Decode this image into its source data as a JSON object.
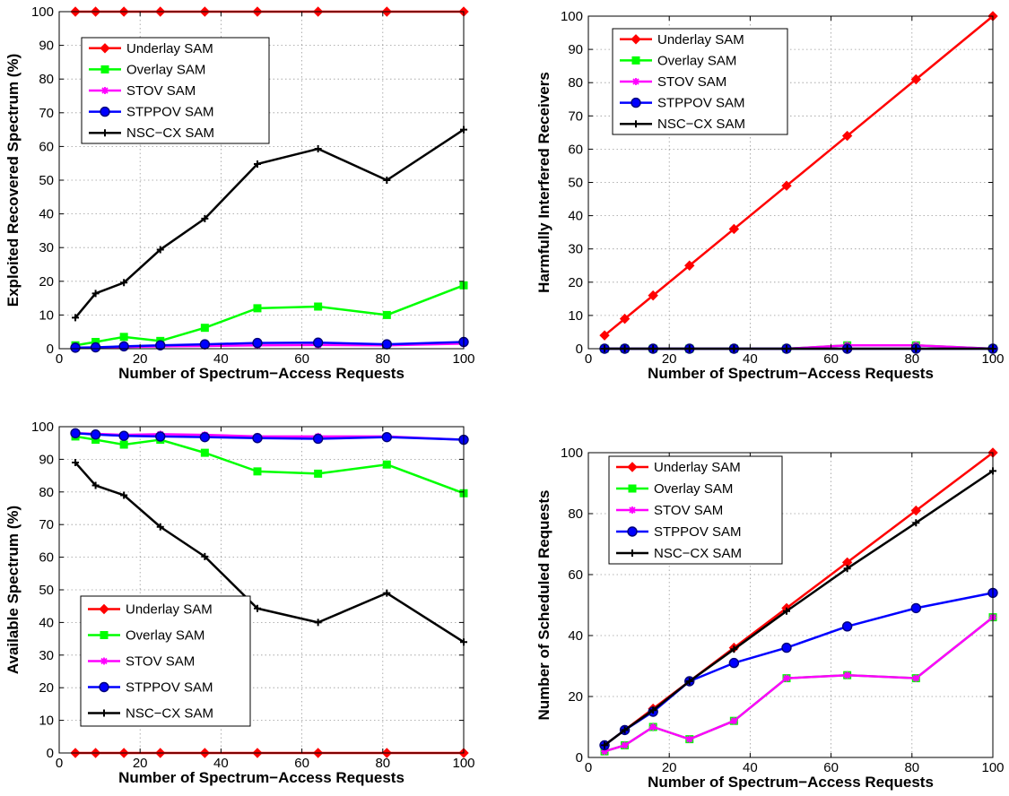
{
  "chart_data": [
    {
      "type": "line",
      "xlabel": "Number of Spectrum−Access Requests",
      "ylabel": "Exploited Recovered Spectrum (%)",
      "xlim": [
        0,
        100
      ],
      "ylim": [
        0,
        100
      ],
      "xticks": [
        0,
        20,
        40,
        60,
        80,
        100
      ],
      "yticks": [
        0,
        10,
        20,
        30,
        40,
        50,
        60,
        70,
        80,
        90,
        100
      ],
      "grid": true,
      "legend_position": "top-left",
      "x": [
        4,
        9,
        16,
        25,
        36,
        49,
        64,
        81,
        100
      ],
      "series": [
        {
          "name": "Underlay SAM",
          "color": "#ff0000",
          "marker": "diamond",
          "values": [
            100,
            100,
            100,
            100,
            100,
            100,
            100,
            100,
            100
          ]
        },
        {
          "name": "Overlay SAM",
          "color": "#00ff00",
          "marker": "square",
          "values": [
            1,
            2,
            3.5,
            2.3,
            6.2,
            12,
            12.5,
            10,
            18.8
          ]
        },
        {
          "name": "STOV SAM",
          "color": "#ff00ff",
          "marker": "star",
          "values": [
            0.2,
            0.3,
            0.5,
            0.7,
            0.8,
            1,
            1.1,
            1,
            1.5
          ]
        },
        {
          "name": "STPPOV SAM",
          "color": "#0000ff",
          "marker": "circle",
          "values": [
            0.3,
            0.4,
            0.7,
            1,
            1.3,
            1.7,
            1.8,
            1.3,
            2
          ]
        },
        {
          "name": "NSC−CX SAM",
          "color": "#000000",
          "marker": "plus",
          "values": [
            9.2,
            16.4,
            19.6,
            29.4,
            38.6,
            54.8,
            59.3,
            50,
            65
          ]
        }
      ]
    },
    {
      "type": "line",
      "xlabel": "Number of Spectrum−Access Requests",
      "ylabel": "Harmfully Interfered Receivers",
      "xlim": [
        0,
        100
      ],
      "ylim": [
        0,
        100
      ],
      "xticks": [
        0,
        20,
        40,
        60,
        80,
        100
      ],
      "yticks": [
        0,
        10,
        20,
        30,
        40,
        50,
        60,
        70,
        80,
        90,
        100
      ],
      "grid": true,
      "legend_position": "top-left",
      "x": [
        4,
        9,
        16,
        25,
        36,
        49,
        64,
        81,
        100
      ],
      "series": [
        {
          "name": "Underlay SAM",
          "color": "#ff0000",
          "marker": "diamond",
          "values": [
            4,
            9,
            16,
            25,
            36,
            49,
            64,
            81,
            100
          ]
        },
        {
          "name": "Overlay SAM",
          "color": "#00ff00",
          "marker": "square",
          "values": [
            0,
            0,
            0,
            0,
            0,
            0,
            1,
            1,
            0
          ]
        },
        {
          "name": "STOV SAM",
          "color": "#ff00ff",
          "marker": "star",
          "values": [
            0,
            0,
            0,
            0,
            0,
            0,
            1,
            1,
            0
          ]
        },
        {
          "name": "STPPOV SAM",
          "color": "#0000ff",
          "marker": "circle",
          "values": [
            0,
            0,
            0,
            0,
            0,
            0,
            0,
            0,
            0
          ]
        },
        {
          "name": "NSC−CX SAM",
          "color": "#000000",
          "marker": "plus",
          "values": [
            0,
            0,
            0,
            0,
            0,
            0,
            0,
            0,
            0
          ]
        }
      ]
    },
    {
      "type": "line",
      "xlabel": "Number of Spectrum−Access Requests",
      "ylabel": "Available Spectrum (%)",
      "xlim": [
        0,
        100
      ],
      "ylim": [
        0,
        100
      ],
      "xticks": [
        0,
        20,
        40,
        60,
        80,
        100
      ],
      "yticks": [
        0,
        10,
        20,
        30,
        40,
        50,
        60,
        70,
        80,
        90,
        100
      ],
      "grid": true,
      "legend_position": "bottom-left",
      "x": [
        4,
        9,
        16,
        25,
        36,
        49,
        64,
        81,
        100
      ],
      "series": [
        {
          "name": "Underlay SAM",
          "color": "#ff0000",
          "marker": "diamond",
          "values": [
            0,
            0,
            0,
            0,
            0,
            0,
            0,
            0,
            0
          ]
        },
        {
          "name": "Overlay SAM",
          "color": "#00ff00",
          "marker": "square",
          "values": [
            97,
            96,
            94.5,
            96,
            92,
            86.3,
            85.6,
            88.4,
            79.6
          ]
        },
        {
          "name": "STOV SAM",
          "color": "#ff00ff",
          "marker": "star",
          "values": [
            98,
            97.8,
            97.5,
            97.7,
            97.5,
            97,
            97,
            97,
            96
          ]
        },
        {
          "name": "STPPOV SAM",
          "color": "#0000ff",
          "marker": "circle",
          "values": [
            98,
            97.6,
            97.2,
            97,
            96.8,
            96.5,
            96.3,
            96.8,
            96
          ]
        },
        {
          "name": "NSC−CX SAM",
          "color": "#000000",
          "marker": "plus",
          "values": [
            89,
            82,
            79,
            69.3,
            60.2,
            44.3,
            40,
            49,
            34
          ]
        }
      ]
    },
    {
      "type": "line",
      "xlabel": "Number of Spectrum−Access Requests",
      "ylabel": "Number of Scheduled Requests",
      "xlim": [
        0,
        100
      ],
      "ylim": [
        0,
        100
      ],
      "xticks": [
        0,
        20,
        40,
        60,
        80,
        100
      ],
      "yticks": [
        0,
        20,
        40,
        60,
        80,
        100
      ],
      "grid": true,
      "legend_position": "top-left",
      "x": [
        4,
        9,
        16,
        25,
        36,
        49,
        64,
        81,
        100
      ],
      "series": [
        {
          "name": "Underlay SAM",
          "color": "#ff0000",
          "marker": "diamond",
          "values": [
            4,
            9,
            16,
            25,
            36,
            49,
            64,
            81,
            100
          ]
        },
        {
          "name": "Overlay SAM",
          "color": "#00ff00",
          "marker": "square",
          "values": [
            2,
            4,
            10,
            6,
            12,
            26,
            27,
            26,
            46
          ]
        },
        {
          "name": "STOV SAM",
          "color": "#ff00ff",
          "marker": "star",
          "values": [
            2,
            4,
            10,
            6,
            12,
            26,
            27,
            26,
            46
          ]
        },
        {
          "name": "STPPOV SAM",
          "color": "#0000ff",
          "marker": "circle",
          "values": [
            4,
            9,
            15,
            25,
            31,
            36,
            43,
            49,
            54
          ]
        },
        {
          "name": "NSC−CX SAM",
          "color": "#000000",
          "marker": "plus",
          "values": [
            4,
            9,
            15.5,
            25,
            35.5,
            48,
            62,
            77,
            94
          ]
        }
      ]
    }
  ]
}
